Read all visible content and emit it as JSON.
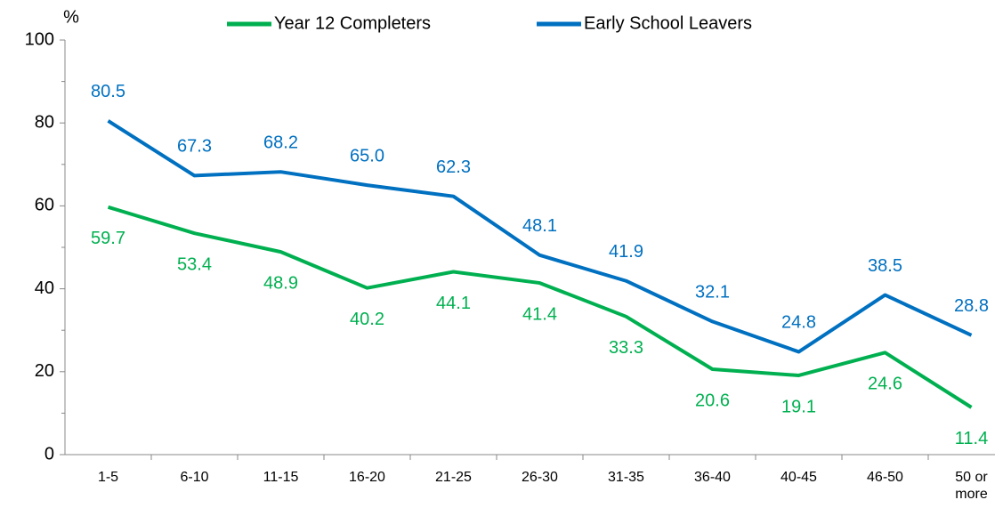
{
  "chart_data": {
    "type": "line",
    "y_label": "%",
    "categories": [
      "1-5",
      "6-10",
      "11-15",
      "16-20",
      "21-25",
      "26-30",
      "31-35",
      "36-40",
      "40-45",
      "46-50",
      "50 or more"
    ],
    "series": [
      {
        "name": "Year 12 Completers",
        "color": "#00b050",
        "values": [
          59.7,
          53.4,
          48.9,
          40.2,
          44.1,
          41.4,
          33.3,
          20.6,
          19.1,
          24.6,
          11.4
        ],
        "label_position": "below"
      },
      {
        "name": "Early School Leavers",
        "color": "#0070c0",
        "values": [
          80.5,
          67.3,
          68.2,
          65.0,
          62.3,
          48.1,
          41.9,
          32.1,
          24.8,
          38.5,
          28.8
        ],
        "value_labels": [
          "80.5",
          "67.3",
          "68.2",
          "65.0",
          "62.3",
          "48.1",
          "41.9",
          "32.1",
          "24.8",
          "38.5",
          "28.8"
        ],
        "label_position": "above"
      }
    ],
    "ylim": [
      0,
      100
    ],
    "yticks": [
      0,
      20,
      40,
      60,
      80,
      100
    ],
    "legend": "top"
  }
}
